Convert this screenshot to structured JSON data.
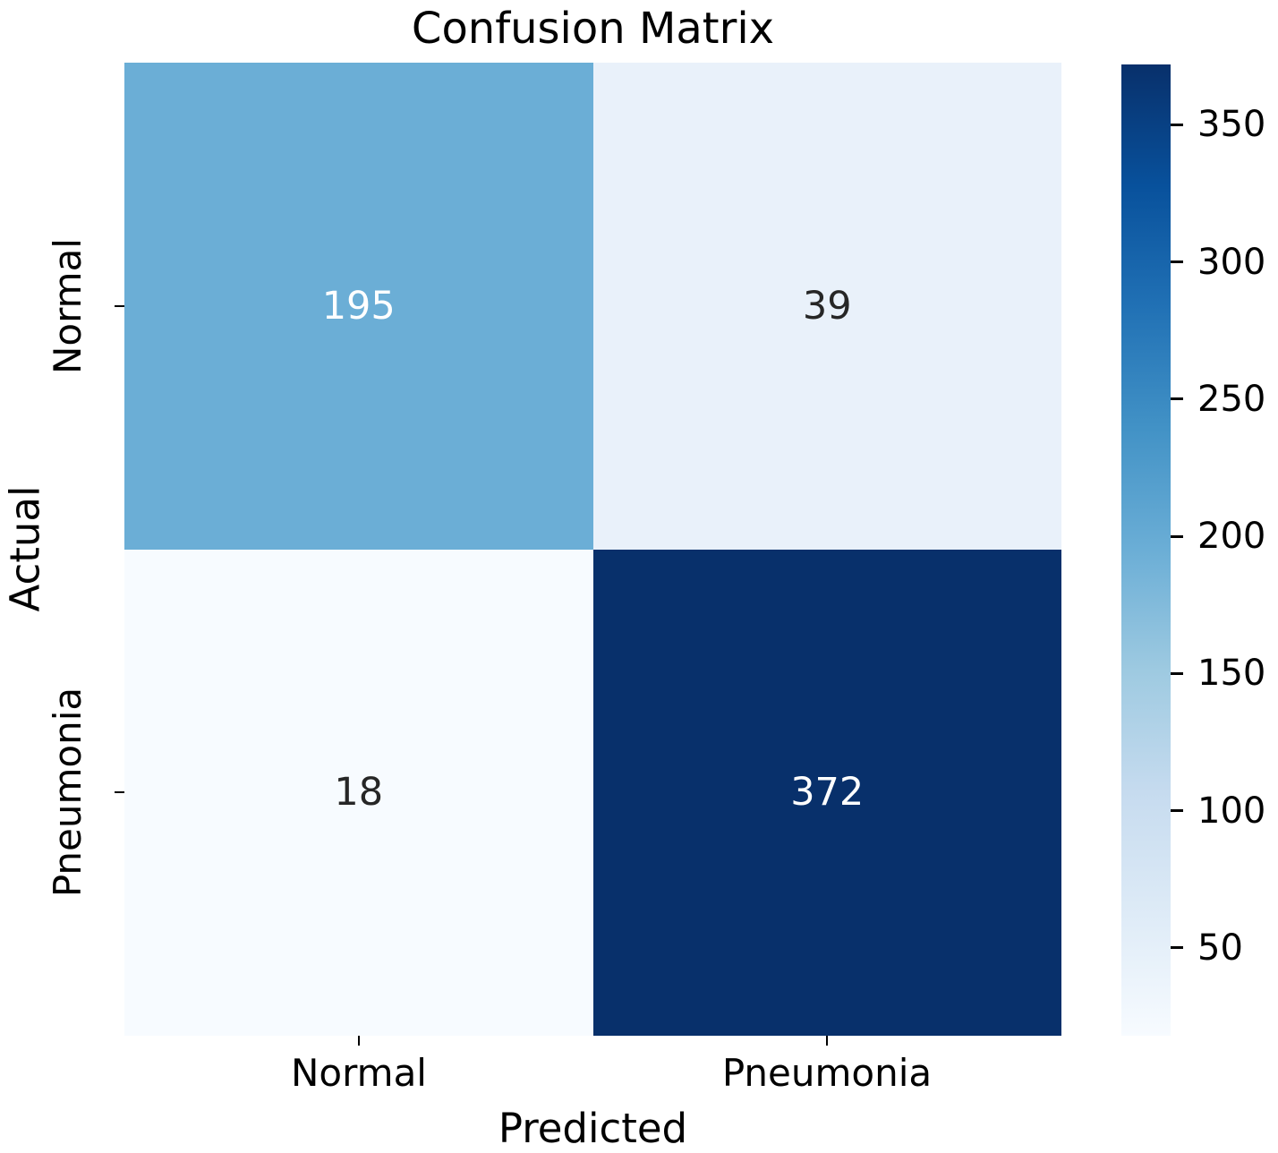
{
  "chart_data": {
    "type": "heatmap",
    "title": "Confusion Matrix",
    "xlabel": "Predicted",
    "ylabel": "Actual",
    "x_categories": [
      "Normal",
      "Pneumonia"
    ],
    "y_categories": [
      "Normal",
      "Pneumonia"
    ],
    "matrix": [
      [
        195,
        39
      ],
      [
        18,
        372
      ]
    ],
    "colormap": "Blues",
    "vmin": 18,
    "vmax": 372,
    "colorbar_ticks": [
      50,
      100,
      150,
      200,
      250,
      300,
      350
    ],
    "cell_colors": [
      [
        "#6baed6",
        "#e9f1fa"
      ],
      [
        "#f7fbff",
        "#08306b"
      ]
    ],
    "cell_text_colors": [
      [
        "#ffffff",
        "#262626"
      ],
      [
        "#262626",
        "#ffffff"
      ]
    ],
    "colorbar_gradient": [
      "#f7fbff",
      "#deebf7",
      "#c6dbef",
      "#9ecae1",
      "#6baed6",
      "#4292c6",
      "#2171b5",
      "#08519c",
      "#08306b"
    ],
    "legend_position": "right-colorbar",
    "grid": false
  }
}
